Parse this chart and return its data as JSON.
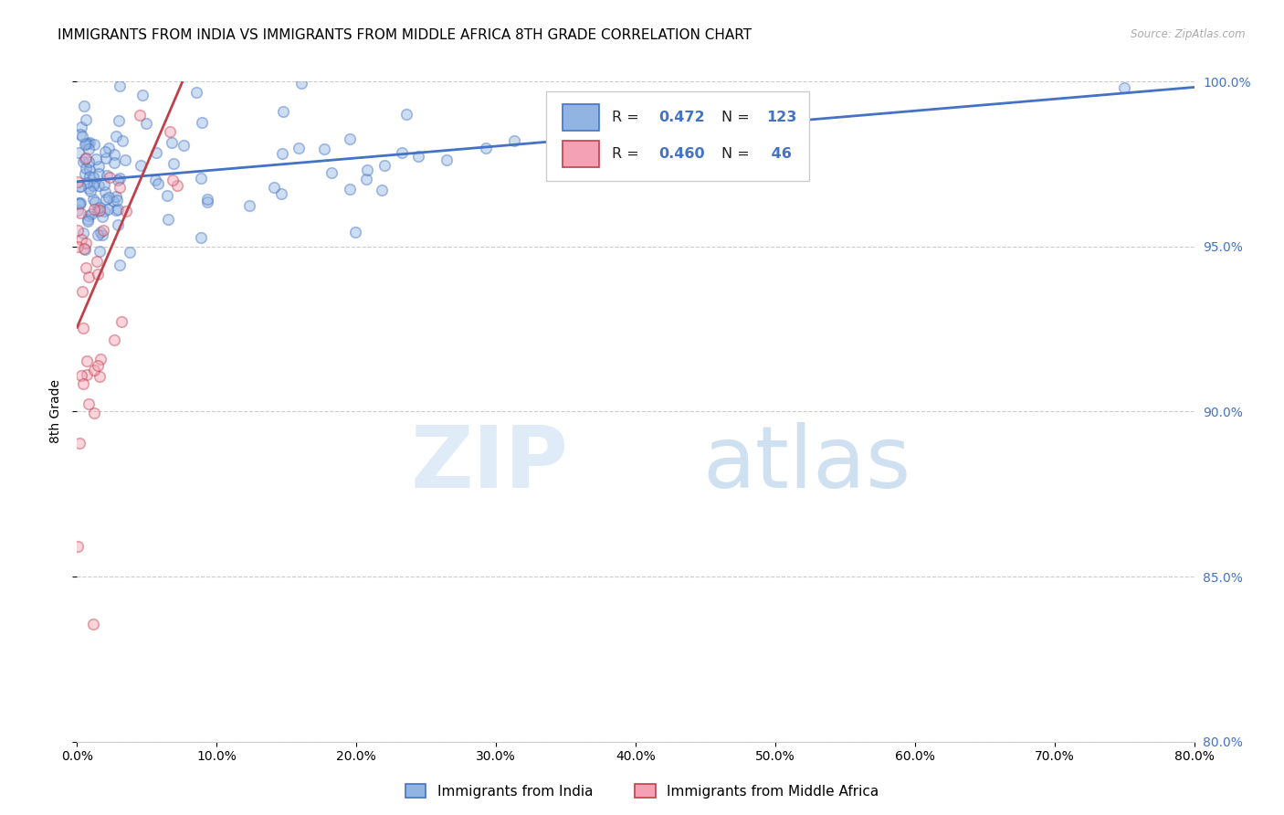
{
  "title": "IMMIGRANTS FROM INDIA VS IMMIGRANTS FROM MIDDLE AFRICA 8TH GRADE CORRELATION CHART",
  "source": "Source: ZipAtlas.com",
  "xlabel_india": "Immigrants from India",
  "xlabel_africa": "Immigrants from Middle Africa",
  "ylabel": "8th Grade",
  "xlim": [
    0.0,
    80.0
  ],
  "ylim": [
    80.0,
    100.0
  ],
  "x_ticks": [
    0.0,
    10.0,
    20.0,
    30.0,
    40.0,
    50.0,
    60.0,
    70.0,
    80.0
  ],
  "y_ticks": [
    80.0,
    85.0,
    90.0,
    95.0,
    100.0
  ],
  "R_india": 0.472,
  "N_india": 123,
  "R_africa": 0.46,
  "N_africa": 46,
  "color_india": "#92b4e3",
  "color_africa": "#f4a0b5",
  "color_india_line": "#4472c4",
  "color_africa_line": "#c0404a",
  "watermark_zip": "ZIP",
  "watermark_atlas": "atlas",
  "background_color": "#ffffff",
  "grid_color": "#cccccc",
  "title_fontsize": 11,
  "axis_label_fontsize": 10,
  "tick_fontsize": 10,
  "right_tick_color": "#4472c4",
  "scatter_size": 70,
  "scatter_alpha": 0.45,
  "scatter_linewidth": 1.2
}
